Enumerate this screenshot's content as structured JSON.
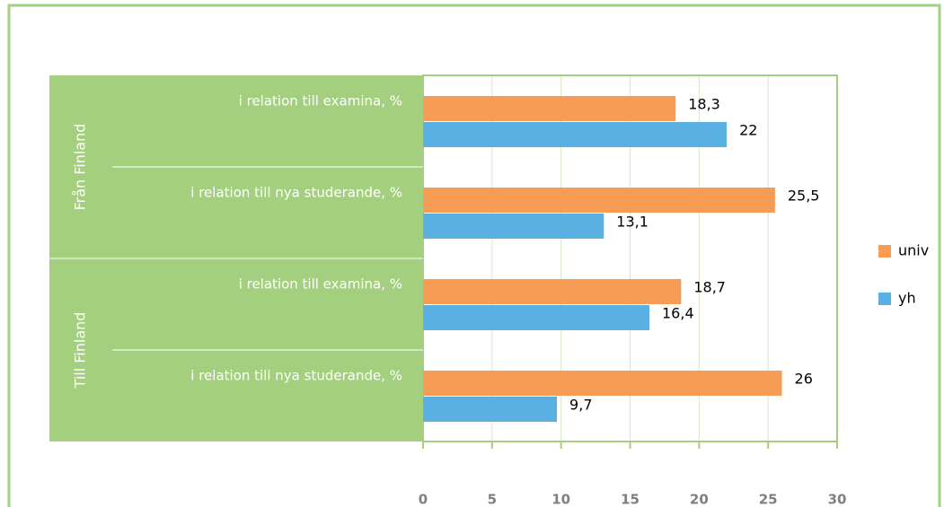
{
  "chart_data": {
    "type": "bar",
    "orientation": "horizontal",
    "groups": [
      "Från Finland",
      "Till Finland"
    ],
    "categories": [
      "i relation till examina, %",
      "i relation till nya studerande, %",
      "i relation till examina, %",
      "i relation till nya studerande, %"
    ],
    "series": [
      {
        "name": "univ",
        "color": "#f79c54",
        "values": [
          18.3,
          25.5,
          18.7,
          26
        ],
        "value_labels": [
          "18,3",
          "25,5",
          "18,7",
          "26"
        ]
      },
      {
        "name": "yh",
        "color": "#5aafe3",
        "values": [
          22,
          13.1,
          16.4,
          9.7
        ],
        "value_labels": [
          "22",
          "13,1",
          "16,4",
          "9,7"
        ]
      }
    ],
    "xlim": [
      0,
      30
    ],
    "xticks": [
      0,
      5,
      10,
      15,
      20,
      25,
      30
    ],
    "grid": true,
    "legend": "right"
  }
}
